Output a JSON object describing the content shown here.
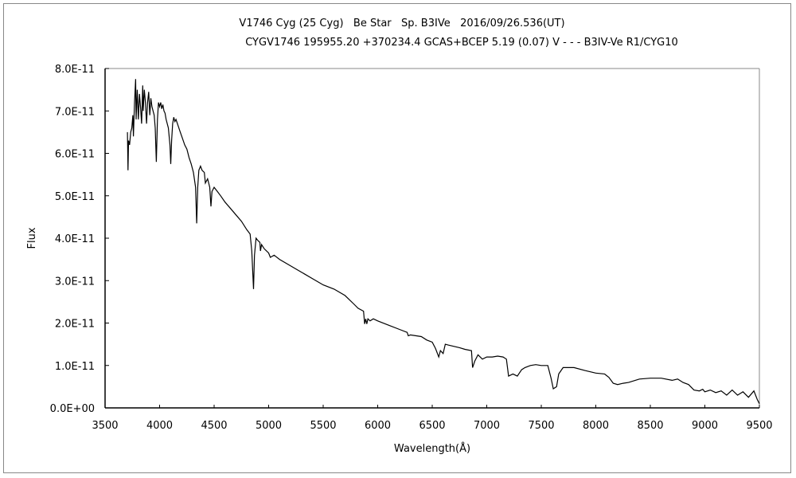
{
  "chart_data": {
    "type": "line",
    "title": "V1746 Cyg (25 Cyg)   Be Star   Sp. B3IVe   2016/09/26.536(UT)",
    "subtitle": "CYGV1746 195955.20 +370234.4 GCAS+BCEP 5.19 (0.07) V - - - B3IV-Ve R1/CYG10",
    "xlabel": "Wavelength(Å)",
    "ylabel": "Flux",
    "xlim": [
      3500,
      9500
    ],
    "ylim": [
      0,
      8e-11
    ],
    "x_ticks": [
      3500,
      4000,
      4500,
      5000,
      5500,
      6000,
      6500,
      7000,
      7500,
      8000,
      8500,
      9000,
      9500
    ],
    "x_tick_labels": [
      "3500",
      "4000",
      "4500",
      "5000",
      "5500",
      "6000",
      "6500",
      "7000",
      "7500",
      "8000",
      "8500",
      "9000",
      "9500"
    ],
    "y_ticks": [
      0,
      1,
      2,
      3,
      4,
      5,
      6,
      7,
      8
    ],
    "y_tick_labels": [
      "0.0E+00",
      "1.0E-11",
      "2.0E-11",
      "3.0E-11",
      "4.0E-11",
      "5.0E-11",
      "6.0E-11",
      "7.0E-11",
      "8.0E-11"
    ],
    "grid": false,
    "legend": "none",
    "flux_scale": 1e-11,
    "series": [
      {
        "name": "spectrum",
        "color": "#000000",
        "points": [
          [
            3705,
            6.5
          ],
          [
            3710,
            5.6
          ],
          [
            3715,
            6.3
          ],
          [
            3725,
            6.2
          ],
          [
            3735,
            6.5
          ],
          [
            3745,
            6.6
          ],
          [
            3755,
            6.9
          ],
          [
            3760,
            6.4
          ],
          [
            3770,
            7.2
          ],
          [
            3780,
            7.75
          ],
          [
            3785,
            6.8
          ],
          [
            3795,
            7.5
          ],
          [
            3805,
            6.8
          ],
          [
            3815,
            7.4
          ],
          [
            3825,
            7.1
          ],
          [
            3835,
            6.7
          ],
          [
            3845,
            7.6
          ],
          [
            3850,
            7.0
          ],
          [
            3860,
            7.5
          ],
          [
            3870,
            7.2
          ],
          [
            3880,
            6.7
          ],
          [
            3890,
            7.2
          ],
          [
            3900,
            7.45
          ],
          [
            3910,
            6.9
          ],
          [
            3920,
            7.3
          ],
          [
            3930,
            7.1
          ],
          [
            3940,
            7.0
          ],
          [
            3950,
            6.9
          ],
          [
            3960,
            6.6
          ],
          [
            3970,
            5.8
          ],
          [
            3980,
            6.8
          ],
          [
            3990,
            7.2
          ],
          [
            4000,
            7.1
          ],
          [
            4010,
            7.2
          ],
          [
            4020,
            7.05
          ],
          [
            4030,
            7.15
          ],
          [
            4040,
            7.0
          ],
          [
            4050,
            6.95
          ],
          [
            4060,
            6.8
          ],
          [
            4080,
            6.6
          ],
          [
            4095,
            6.2
          ],
          [
            4102,
            5.75
          ],
          [
            4110,
            6.3
          ],
          [
            4120,
            6.7
          ],
          [
            4130,
            6.85
          ],
          [
            4140,
            6.75
          ],
          [
            4150,
            6.8
          ],
          [
            4170,
            6.65
          ],
          [
            4190,
            6.5
          ],
          [
            4210,
            6.35
          ],
          [
            4230,
            6.2
          ],
          [
            4250,
            6.1
          ],
          [
            4270,
            5.9
          ],
          [
            4290,
            5.75
          ],
          [
            4310,
            5.55
          ],
          [
            4330,
            5.2
          ],
          [
            4340,
            4.35
          ],
          [
            4350,
            5.2
          ],
          [
            4360,
            5.6
          ],
          [
            4375,
            5.7
          ],
          [
            4390,
            5.6
          ],
          [
            4410,
            5.55
          ],
          [
            4420,
            5.3
          ],
          [
            4440,
            5.4
          ],
          [
            4460,
            5.2
          ],
          [
            4471,
            4.75
          ],
          [
            4480,
            5.1
          ],
          [
            4500,
            5.2
          ],
          [
            4530,
            5.1
          ],
          [
            4560,
            5.0
          ],
          [
            4600,
            4.85
          ],
          [
            4650,
            4.7
          ],
          [
            4700,
            4.55
          ],
          [
            4750,
            4.4
          ],
          [
            4800,
            4.2
          ],
          [
            4830,
            4.1
          ],
          [
            4845,
            3.7
          ],
          [
            4861,
            2.8
          ],
          [
            4870,
            3.6
          ],
          [
            4885,
            4.0
          ],
          [
            4900,
            3.95
          ],
          [
            4920,
            3.9
          ],
          [
            4925,
            3.7
          ],
          [
            4935,
            3.85
          ],
          [
            4960,
            3.75
          ],
          [
            5000,
            3.65
          ],
          [
            5015,
            3.55
          ],
          [
            5050,
            3.6
          ],
          [
            5100,
            3.5
          ],
          [
            5200,
            3.35
          ],
          [
            5300,
            3.2
          ],
          [
            5400,
            3.05
          ],
          [
            5500,
            2.9
          ],
          [
            5600,
            2.8
          ],
          [
            5700,
            2.65
          ],
          [
            5780,
            2.45
          ],
          [
            5820,
            2.35
          ],
          [
            5870,
            2.28
          ],
          [
            5880,
            1.98
          ],
          [
            5890,
            2.1
          ],
          [
            5900,
            1.98
          ],
          [
            5910,
            2.1
          ],
          [
            5930,
            2.05
          ],
          [
            5960,
            2.1
          ],
          [
            6000,
            2.05
          ],
          [
            6100,
            1.95
          ],
          [
            6200,
            1.85
          ],
          [
            6270,
            1.78
          ],
          [
            6280,
            1.7
          ],
          [
            6300,
            1.72
          ],
          [
            6400,
            1.68
          ],
          [
            6450,
            1.6
          ],
          [
            6500,
            1.55
          ],
          [
            6530,
            1.4
          ],
          [
            6560,
            1.2
          ],
          [
            6575,
            1.35
          ],
          [
            6600,
            1.28
          ],
          [
            6620,
            1.5
          ],
          [
            6650,
            1.48
          ],
          [
            6700,
            1.45
          ],
          [
            6750,
            1.42
          ],
          [
            6800,
            1.38
          ],
          [
            6860,
            1.35
          ],
          [
            6870,
            0.95
          ],
          [
            6890,
            1.1
          ],
          [
            6920,
            1.25
          ],
          [
            6960,
            1.15
          ],
          [
            7000,
            1.2
          ],
          [
            7050,
            1.2
          ],
          [
            7100,
            1.22
          ],
          [
            7150,
            1.2
          ],
          [
            7180,
            1.15
          ],
          [
            7200,
            0.75
          ],
          [
            7240,
            0.8
          ],
          [
            7280,
            0.75
          ],
          [
            7320,
            0.9
          ],
          [
            7350,
            0.95
          ],
          [
            7400,
            1.0
          ],
          [
            7450,
            1.02
          ],
          [
            7500,
            1.0
          ],
          [
            7560,
            1.0
          ],
          [
            7590,
            0.7
          ],
          [
            7610,
            0.45
          ],
          [
            7640,
            0.5
          ],
          [
            7660,
            0.8
          ],
          [
            7700,
            0.95
          ],
          [
            7800,
            0.95
          ],
          [
            7900,
            0.88
          ],
          [
            8000,
            0.82
          ],
          [
            8080,
            0.8
          ],
          [
            8120,
            0.72
          ],
          [
            8160,
            0.58
          ],
          [
            8200,
            0.55
          ],
          [
            8250,
            0.58
          ],
          [
            8300,
            0.6
          ],
          [
            8400,
            0.68
          ],
          [
            8500,
            0.7
          ],
          [
            8600,
            0.7
          ],
          [
            8700,
            0.65
          ],
          [
            8750,
            0.68
          ],
          [
            8800,
            0.6
          ],
          [
            8850,
            0.55
          ],
          [
            8900,
            0.42
          ],
          [
            8950,
            0.4
          ],
          [
            8980,
            0.44
          ],
          [
            9000,
            0.38
          ],
          [
            9050,
            0.42
          ],
          [
            9100,
            0.36
          ],
          [
            9150,
            0.4
          ],
          [
            9200,
            0.3
          ],
          [
            9250,
            0.42
          ],
          [
            9300,
            0.3
          ],
          [
            9350,
            0.38
          ],
          [
            9400,
            0.25
          ],
          [
            9450,
            0.4
          ],
          [
            9480,
            0.2
          ],
          [
            9500,
            0.1
          ]
        ]
      }
    ]
  }
}
